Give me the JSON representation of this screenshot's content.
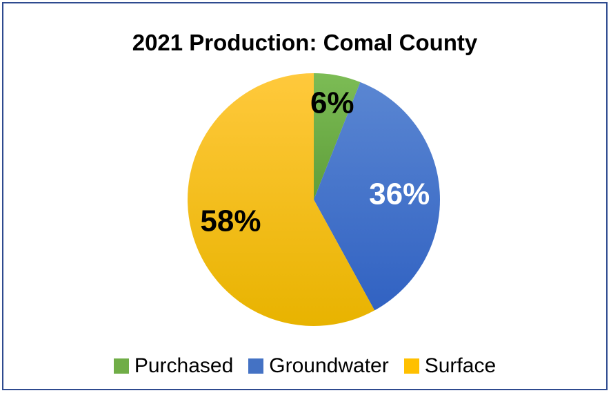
{
  "chart_data": {
    "type": "pie",
    "title": "2021 Production: Comal County",
    "slices": [
      {
        "name": "Purchased",
        "value": 6,
        "label": "6%",
        "color": "#70ad47",
        "label_color": "#000000"
      },
      {
        "name": "Groundwater",
        "value": 36,
        "label": "36%",
        "color": "#4472c4",
        "label_color": "#ffffff"
      },
      {
        "name": "Surface",
        "value": 58,
        "label": "58%",
        "color": "#ffc000",
        "label_color": "#000000"
      }
    ],
    "start_angle_deg": 0,
    "direction": "clockwise",
    "legend_position": "bottom",
    "border_color": "#2e4a8f"
  }
}
